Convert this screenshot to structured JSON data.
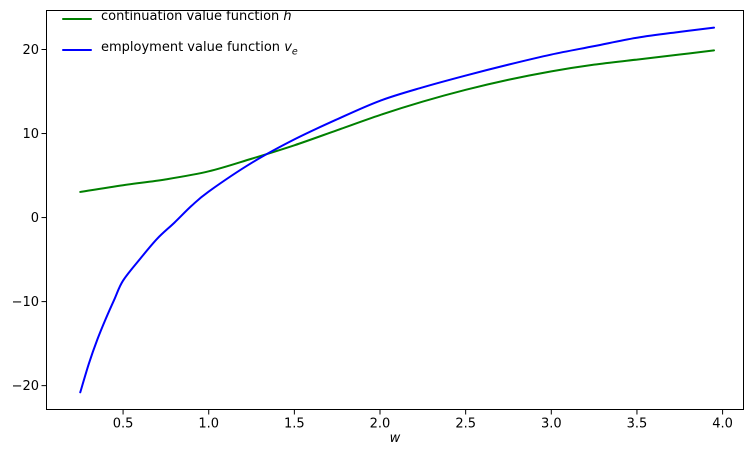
{
  "figure": {
    "background": "#ffffff"
  },
  "axes": {
    "spine_color": "#000000",
    "tick_color": "#000000",
    "text_color": "#000000"
  },
  "legend": {
    "frame": false,
    "position": "upper-left",
    "items": [
      {
        "label": "continuation value function h",
        "prefix": "continuation value function ",
        "var": "h",
        "sub": "",
        "color": "#008000"
      },
      {
        "label": "employment value function v_e",
        "prefix": "employment value function ",
        "var": "v",
        "sub": "e",
        "color": "#0000ff"
      }
    ]
  },
  "chart_data": {
    "type": "line",
    "title": "",
    "xlabel": "w",
    "ylabel": "",
    "grid": false,
    "xlim": [
      0.05,
      4.125
    ],
    "ylim": [
      -22.9,
      24.7
    ],
    "x_ticks": [
      0.5,
      1.0,
      1.5,
      2.0,
      2.5,
      3.0,
      3.5,
      4.0
    ],
    "x_tick_labels": [
      "0.5",
      "1.0",
      "1.5",
      "2.0",
      "2.5",
      "3.0",
      "3.5",
      "4.0"
    ],
    "y_ticks": [
      -20,
      -10,
      0,
      10,
      20
    ],
    "y_tick_labels": [
      "−20",
      "−10",
      "0",
      "10",
      "20"
    ],
    "series": [
      {
        "name": "continuation value function h",
        "color": "#008000",
        "line_width": 2,
        "x": [
          0.25,
          0.5,
          0.75,
          1.0,
          1.25,
          1.5,
          1.75,
          2.0,
          2.25,
          2.5,
          2.75,
          3.0,
          3.25,
          3.5,
          3.75,
          3.95
        ],
        "y": [
          3.05,
          3.85,
          4.55,
          5.5,
          7.0,
          8.6,
          10.4,
          12.2,
          13.8,
          15.2,
          16.4,
          17.4,
          18.2,
          18.8,
          19.4,
          19.9
        ]
      },
      {
        "name": "employment value function v_e",
        "color": "#0000ff",
        "line_width": 2,
        "x": [
          0.25,
          0.3,
          0.35,
          0.4,
          0.45,
          0.5,
          0.6,
          0.7,
          0.8,
          0.9,
          1.0,
          1.25,
          1.5,
          1.75,
          2.0,
          2.25,
          2.5,
          2.75,
          3.0,
          3.25,
          3.5,
          3.75,
          3.95
        ],
        "y": [
          -20.8,
          -17.4,
          -14.5,
          -12.0,
          -9.7,
          -7.5,
          -4.9,
          -2.5,
          -0.6,
          1.4,
          3.1,
          6.5,
          9.3,
          11.7,
          13.9,
          15.5,
          16.9,
          18.2,
          19.4,
          20.4,
          21.4,
          22.1,
          22.6
        ]
      }
    ],
    "crossing_point": {
      "w": 1.36,
      "value": 7.75
    }
  }
}
